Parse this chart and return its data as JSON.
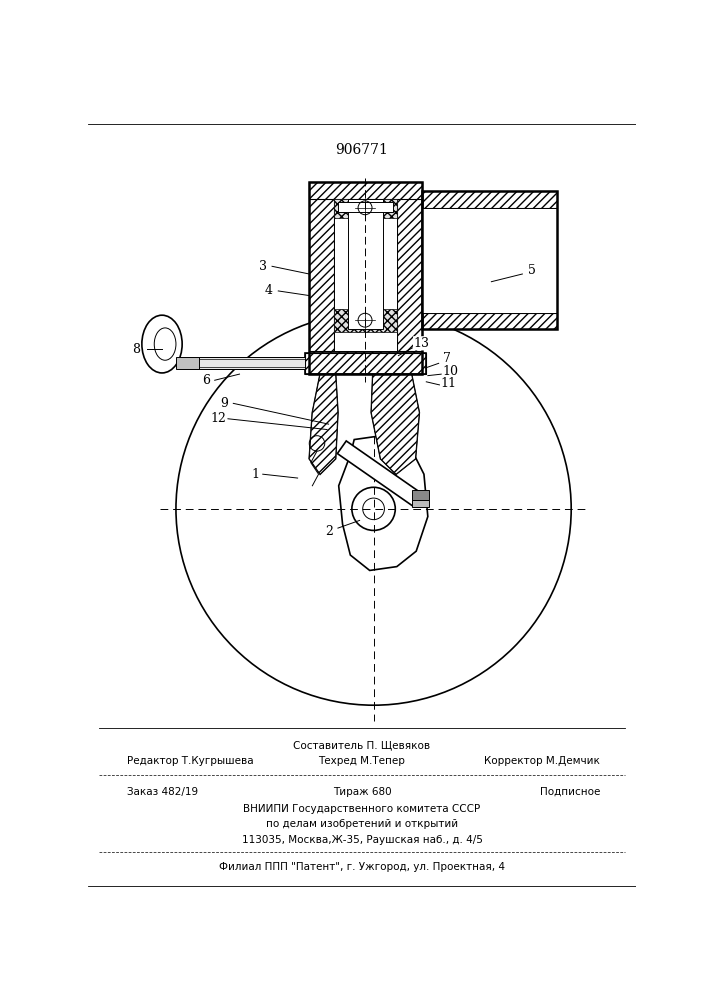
{
  "patent_number": "906771",
  "bg_color": "#ffffff",
  "lc": "#000000",
  "footer_above": "Составитель П. Щевяков",
  "footer_row1_l": "Редактор Т.Кугрышева",
  "footer_row1_c": "Техред М.Тепер",
  "footer_row1_r": "Корректор М.Демчик",
  "footer_row2_l": "Заказ 482/19",
  "footer_row2_c": "Тираж 680",
  "footer_row2_r": "Подписное",
  "footer_row3": "ВНИИПИ Государственного комитета СССР",
  "footer_row4": "по делам изобретений и открытий",
  "footer_row5": "113035, Москва,Ж-35, Раушская наб., д. 4/5",
  "footer_row6": "Филиал ППП \"Патент\", г. Ужгород, ул. Проектная, 4"
}
